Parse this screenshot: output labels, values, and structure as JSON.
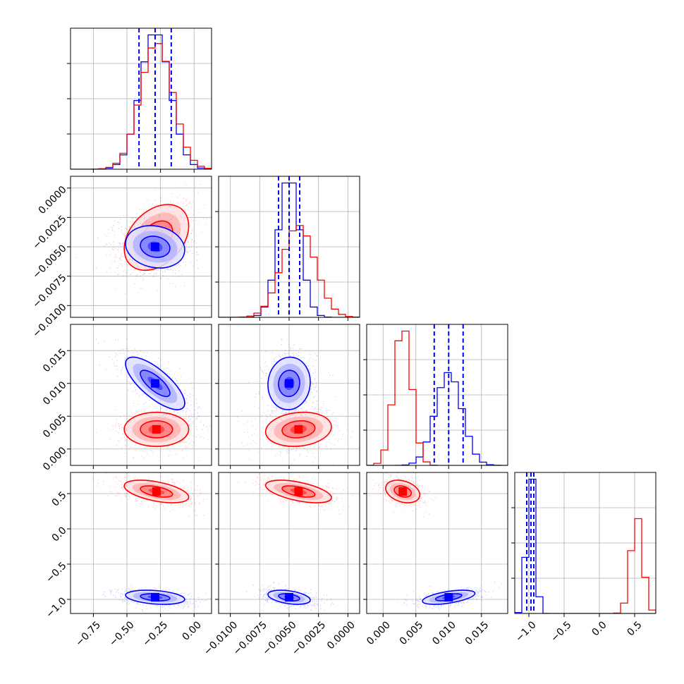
{
  "chart_data": {
    "type": "corner",
    "grid": true,
    "colors": {
      "series_a": "#0000ff",
      "series_b": "#ff0000",
      "grid": "#b0b0b0",
      "frame": "#000000"
    },
    "params": [
      {
        "range": [
          -0.92,
          0.13
        ],
        "ticks": [
          -0.75,
          -0.5,
          -0.25,
          0.0
        ],
        "tick_labels": [
          "−0.75",
          "−0.50",
          "−0.25",
          "0.00"
        ],
        "series_a": {
          "mean": -0.29,
          "sd": 0.11
        },
        "series_b": {
          "mean": -0.28,
          "sd": 0.12
        },
        "quantiles_a": [
          -0.41,
          -0.29,
          -0.17
        ]
      },
      {
        "range": [
          -0.011,
          0.001
        ],
        "ticks": [
          -0.01,
          -0.0075,
          -0.005,
          -0.0025,
          0.0
        ],
        "tick_labels": [
          "−0.0100",
          "−0.0075",
          "−0.0050",
          "−0.0025",
          "0.0000"
        ],
        "series_a": {
          "mean": -0.005,
          "sd": 0.0009
        },
        "series_b": {
          "mean": -0.0042,
          "sd": 0.0014
        },
        "quantiles_a": [
          -0.0059,
          -0.005,
          -0.0041
        ]
      },
      {
        "range": [
          -0.0025,
          0.019
        ],
        "ticks": [
          0.0,
          0.005,
          0.01,
          0.015
        ],
        "tick_labels": [
          "0.000",
          "0.005",
          "0.010",
          "0.015"
        ],
        "series_a": {
          "mean": 0.01,
          "sd": 0.002
        },
        "series_b": {
          "mean": 0.003,
          "sd": 0.0013
        },
        "quantiles_a": [
          0.0078,
          0.01,
          0.0122
        ]
      },
      {
        "range": [
          -1.2,
          0.8
        ],
        "ticks": [
          -1.0,
          -0.5,
          0.0,
          0.5
        ],
        "tick_labels": [
          "−1.0",
          "−0.5",
          "0.0",
          "0.5"
        ],
        "series_a": {
          "mean": -0.97,
          "sd": 0.05
        },
        "series_b": {
          "mean": 0.53,
          "sd": 0.08
        },
        "quantiles_a": [
          -1.03,
          -0.97,
          -0.93
        ]
      }
    ],
    "correlations": {
      "1-0": {
        "a": -0.15,
        "b": 0.35
      },
      "2-0": {
        "a": -0.75,
        "b": 0.0
      },
      "2-1": {
        "a": 0.05,
        "b": 0.15
      },
      "3-0": {
        "a": -0.3,
        "b": -0.5
      },
      "3-1": {
        "a": -0.4,
        "b": -0.55
      },
      "3-2": {
        "a": 0.55,
        "b": -0.3
      }
    }
  }
}
